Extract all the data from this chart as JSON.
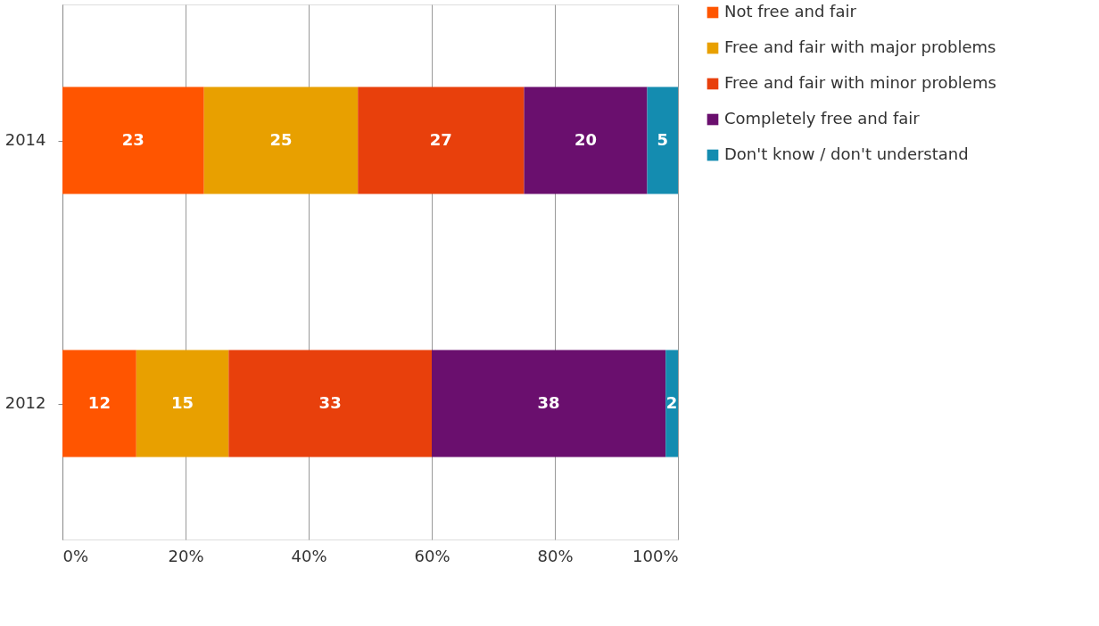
{
  "chart_data": {
    "type": "bar",
    "orientation": "horizontal",
    "stacked": true,
    "categories": [
      "2014",
      "2012"
    ],
    "series": [
      {
        "name": "Not free and fair",
        "color": "#ff5500",
        "values": [
          23,
          12
        ]
      },
      {
        "name": "Free and fair with major problems",
        "color": "#e8a000",
        "values": [
          25,
          15
        ]
      },
      {
        "name": "Free and fair with minor problems",
        "color": "#e8400c",
        "values": [
          27,
          33
        ]
      },
      {
        "name": "Completely free and fair",
        "color": "#6a0f6e",
        "values": [
          20,
          38
        ]
      },
      {
        "name": "Don't know / don't understand",
        "color": "#148cb0",
        "values": [
          5,
          2
        ]
      }
    ],
    "xlim": [
      0,
      100
    ],
    "xticks": [
      {
        "value": 0,
        "label": "0%"
      },
      {
        "value": 20,
        "label": "20%"
      },
      {
        "value": 40,
        "label": "40%"
      },
      {
        "value": 60,
        "label": "60%"
      },
      {
        "value": 80,
        "label": "80%"
      },
      {
        "value": 100,
        "label": "100%"
      }
    ],
    "grid": "x",
    "legend": "right",
    "data_labels": true
  }
}
